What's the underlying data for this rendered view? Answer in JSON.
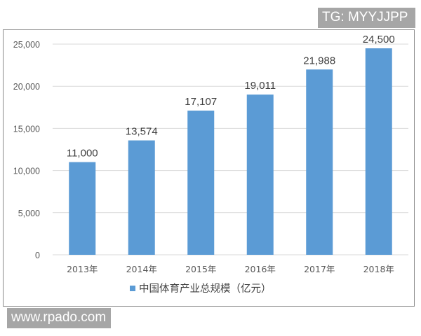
{
  "watermarks": {
    "top_right": "TG: MYYJJPP",
    "bottom_left": "www.rpado.com"
  },
  "chart_data": {
    "type": "bar",
    "title": "",
    "xlabel": "",
    "ylabel": "",
    "categories": [
      "2013年",
      "2014年",
      "2015年",
      "2016年",
      "2017年",
      "2018年"
    ],
    "series": [
      {
        "name": "中国体育产业总规模（亿元）",
        "values": [
          11000,
          13574,
          17107,
          19011,
          21988,
          24500
        ],
        "color": "#5b9bd5"
      }
    ],
    "data_labels": [
      "11,000",
      "13,574",
      "17,107",
      "19,011",
      "21,988",
      "24,500"
    ],
    "ylim": [
      0,
      25000
    ],
    "yticks": [
      0,
      5000,
      10000,
      15000,
      20000,
      25000
    ],
    "ytick_labels": [
      "0",
      "5,000",
      "10,000",
      "15,000",
      "20,000",
      "25,000"
    ],
    "grid": true,
    "legend_position": "bottom"
  }
}
